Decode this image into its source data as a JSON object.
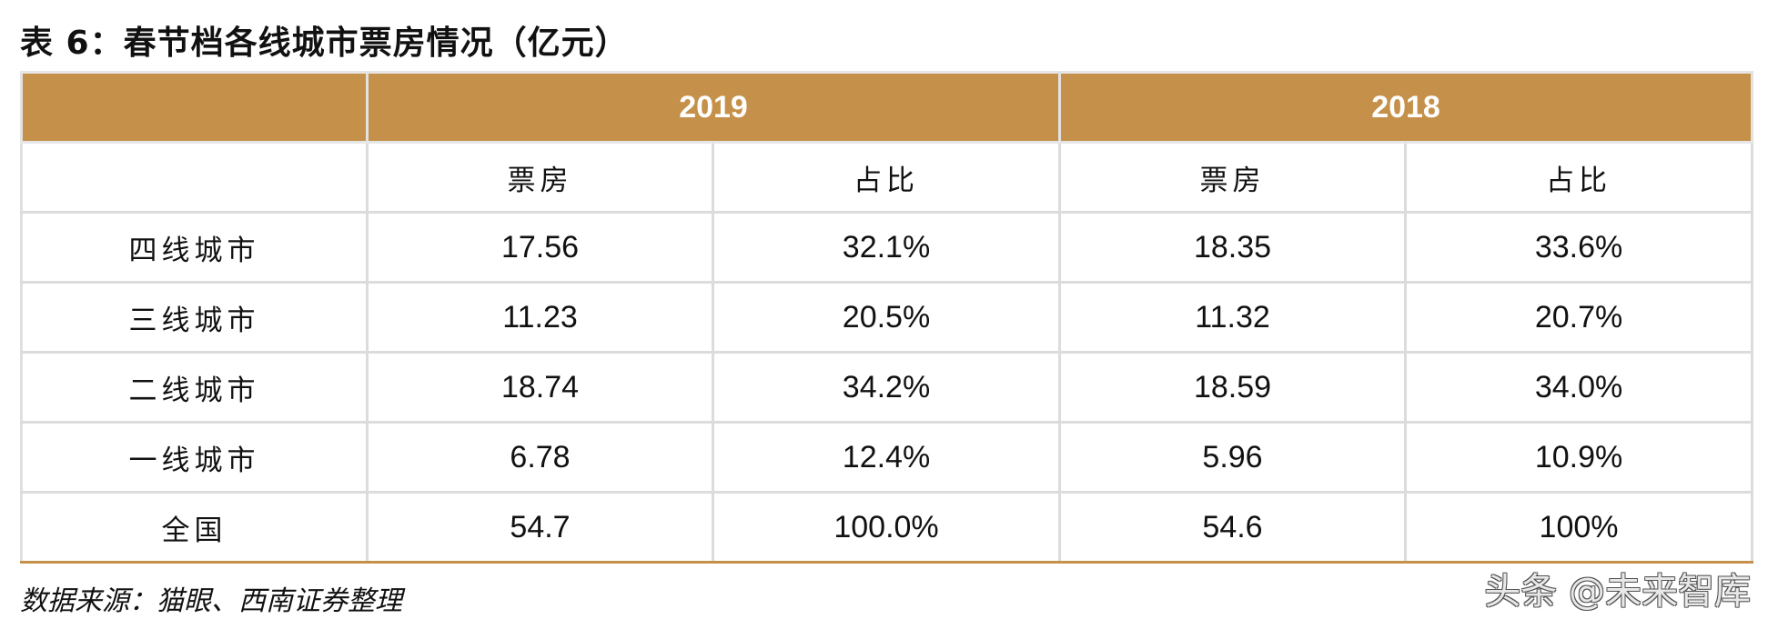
{
  "title": "表 6：春节档各线城市票房情况（亿元）",
  "table": {
    "years": [
      "2019",
      "2018"
    ],
    "subheaders": [
      "票房",
      "占比",
      "票房",
      "占比"
    ],
    "rows": [
      {
        "label": "四线城市",
        "values": [
          "17.56",
          "32.1%",
          "18.35",
          "33.6%"
        ]
      },
      {
        "label": "三线城市",
        "values": [
          "11.23",
          "20.5%",
          "11.32",
          "20.7%"
        ]
      },
      {
        "label": "二线城市",
        "values": [
          "18.74",
          "34.2%",
          "18.59",
          "34.0%"
        ]
      },
      {
        "label": "一线城市",
        "values": [
          "6.78",
          "12.4%",
          "5.96",
          "10.9%"
        ]
      },
      {
        "label": "全国",
        "values": [
          "54.7",
          "100.0%",
          "54.6",
          "100%"
        ]
      }
    ]
  },
  "source": "数据来源：猫眼、西南证券整理",
  "watermark": "头条 @未来智库",
  "colors": {
    "header_bg": "#c5914a",
    "header_text": "#ffffff",
    "grid": "#dcdcdc"
  }
}
